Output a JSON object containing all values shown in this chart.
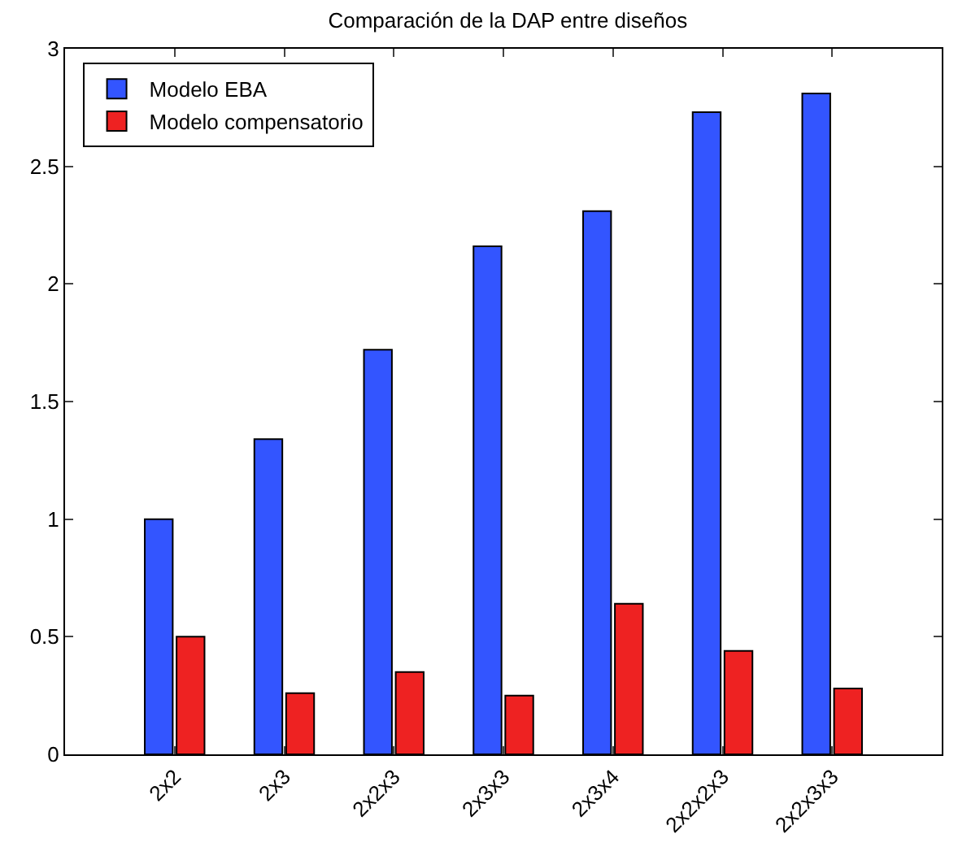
{
  "chart_data": {
    "type": "bar",
    "title": "Comparación de la DAP entre diseños",
    "categories": [
      "2x2",
      "2x3",
      "2x2x3",
      "2x3x3",
      "2x3x4",
      "2x2x2x3",
      "2x2x3x3"
    ],
    "series": [
      {
        "name": "Modelo EBA",
        "color": "#3355ff",
        "values": [
          1.0,
          1.34,
          1.72,
          2.16,
          2.31,
          2.73,
          2.81
        ]
      },
      {
        "name": "Modelo compensatorio",
        "color": "#ee2222",
        "values": [
          0.5,
          0.26,
          0.35,
          0.25,
          0.64,
          0.44,
          0.28
        ]
      }
    ],
    "ylim": [
      0,
      3
    ],
    "yticks": [
      0,
      0.5,
      1,
      1.5,
      2,
      2.5,
      3
    ],
    "legend": "top left"
  }
}
